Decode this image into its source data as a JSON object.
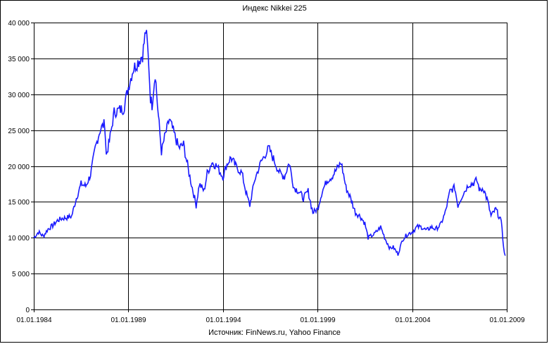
{
  "chart_data": {
    "type": "line",
    "title": "Индекс Nikkei 225",
    "source": "Источник: FinNews.ru, Yahoo Finance",
    "x_range": [
      "1984-01-01",
      "2009-01-01"
    ],
    "x_ticks": [
      "01.01.1984",
      "01.01.1989",
      "01.01.1994",
      "01.01.1999",
      "01.01.2004",
      "01.01.2009"
    ],
    "ylim": [
      0,
      40000
    ],
    "y_ticks": [
      "0",
      "5 000",
      "10 000",
      "15 000",
      "20 000",
      "25 000",
      "30 000",
      "35 000",
      "40 000"
    ],
    "y_tick_values": [
      0,
      5000,
      10000,
      15000,
      20000,
      25000,
      30000,
      35000,
      40000
    ],
    "grid": "major x and y",
    "legend": "none",
    "line_color": "#1a1aff",
    "series": [
      {
        "x": [
          "1984-01",
          "1984-04",
          "1984-07",
          "1984-10",
          "1985-01",
          "1985-04",
          "1985-07",
          "1985-10",
          "1986-01",
          "1986-04",
          "1986-07",
          "1986-10",
          "1987-01",
          "1987-04",
          "1987-07",
          "1987-10",
          "1987-11",
          "1988-01",
          "1988-04",
          "1988-07",
          "1988-10",
          "1989-01",
          "1989-04",
          "1989-07",
          "1989-10",
          "1989-12",
          "1990-01",
          "1990-02",
          "1990-03",
          "1990-04",
          "1990-06",
          "1990-08",
          "1990-10",
          "1990-12",
          "1991-03",
          "1991-06",
          "1991-09",
          "1991-12",
          "1992-03",
          "1992-06",
          "1992-08",
          "1992-10",
          "1993-01",
          "1993-03",
          "1993-06",
          "1993-09",
          "1994-01",
          "1994-03",
          "1994-06",
          "1994-09",
          "1995-01",
          "1995-04",
          "1995-06",
          "1995-09",
          "1996-01",
          "1996-06",
          "1996-09",
          "1997-01",
          "1997-04",
          "1997-07",
          "1997-10",
          "1998-01",
          "1998-04",
          "1998-07",
          "1998-10",
          "1999-01",
          "1999-04",
          "1999-07",
          "1999-10",
          "2000-01",
          "2000-04",
          "2000-07",
          "2000-10",
          "2001-01",
          "2001-04",
          "2001-07",
          "2001-09",
          "2002-01",
          "2002-05",
          "2002-08",
          "2002-11",
          "2003-01",
          "2003-04",
          "2003-07",
          "2003-10",
          "2004-01",
          "2004-04",
          "2004-07",
          "2004-10",
          "2005-01",
          "2005-04",
          "2005-07",
          "2005-10",
          "2006-01",
          "2006-04",
          "2006-06",
          "2006-09",
          "2007-01",
          "2007-03",
          "2007-06",
          "2007-08",
          "2007-10",
          "2008-01",
          "2008-03",
          "2008-06",
          "2008-09",
          "2008-10",
          "2008-11",
          "2008-12"
        ],
        "y": [
          10000,
          10800,
          10200,
          11200,
          11700,
          12400,
          12700,
          12800,
          13000,
          15500,
          17500,
          17200,
          18800,
          22500,
          25000,
          26000,
          21500,
          23500,
          27500,
          27800,
          28000,
          31000,
          33500,
          34500,
          35500,
          38900,
          37000,
          34000,
          29500,
          28500,
          33000,
          27000,
          22000,
          24000,
          26500,
          24500,
          22500,
          23000,
          19500,
          16500,
          14500,
          17500,
          16500,
          19000,
          20500,
          20000,
          18500,
          20000,
          21200,
          20000,
          19000,
          16000,
          14500,
          18000,
          20500,
          22500,
          21000,
          19000,
          18500,
          20500,
          17000,
          16500,
          15500,
          16500,
          13500,
          14000,
          16500,
          18000,
          18500,
          19500,
          20500,
          17000,
          15500,
          13500,
          13000,
          12000,
          10000,
          10500,
          11500,
          9800,
          8500,
          8700,
          7700,
          9800,
          10500,
          10800,
          11500,
          11500,
          11000,
          11500,
          11200,
          11800,
          13500,
          16500,
          17000,
          14500,
          16000,
          17500,
          17500,
          18000,
          16500,
          17000,
          15000,
          13000,
          14000,
          12500,
          11500,
          8500,
          7500
        ]
      }
    ]
  }
}
